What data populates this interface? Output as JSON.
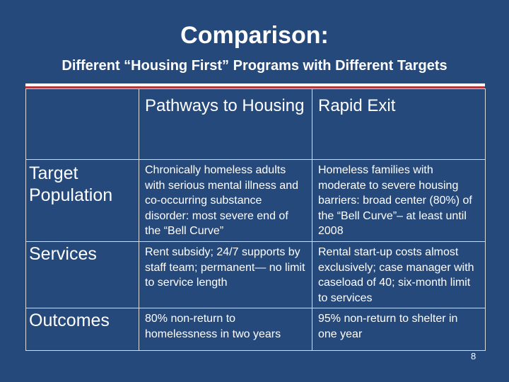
{
  "slide": {
    "title": "Comparison:",
    "subtitle": "Different “Housing First” Programs with Different Targets",
    "page_number": "8"
  },
  "table": {
    "columns": [
      "",
      "Pathways to Housing",
      "Rapid Exit"
    ],
    "rows": [
      {
        "label": "Target Population",
        "pathways": "Chronically homeless adults with serious mental illness and co-occurring substance disorder: most severe end of the “Bell Curve”",
        "rapid_exit": "Homeless families with moderate to severe housing barriers: broad center (80%) of the “Bell Curve”– at least until 2008"
      },
      {
        "label": "Services",
        "pathways": "Rent subsidy; 24/7 supports by staff team; permanent— no limit to service length",
        "rapid_exit": "Rental start-up costs almost exclusively; case manager with caseload of 40; six-month limit to services"
      },
      {
        "label": "Outcomes",
        "pathways": "80% non-return to homelessness in two years",
        "rapid_exit": "95% non-return to shelter in one year"
      }
    ]
  },
  "colors": {
    "background": "#26497b",
    "text": "#ffffff",
    "accent_rule": "#b23a3a"
  }
}
